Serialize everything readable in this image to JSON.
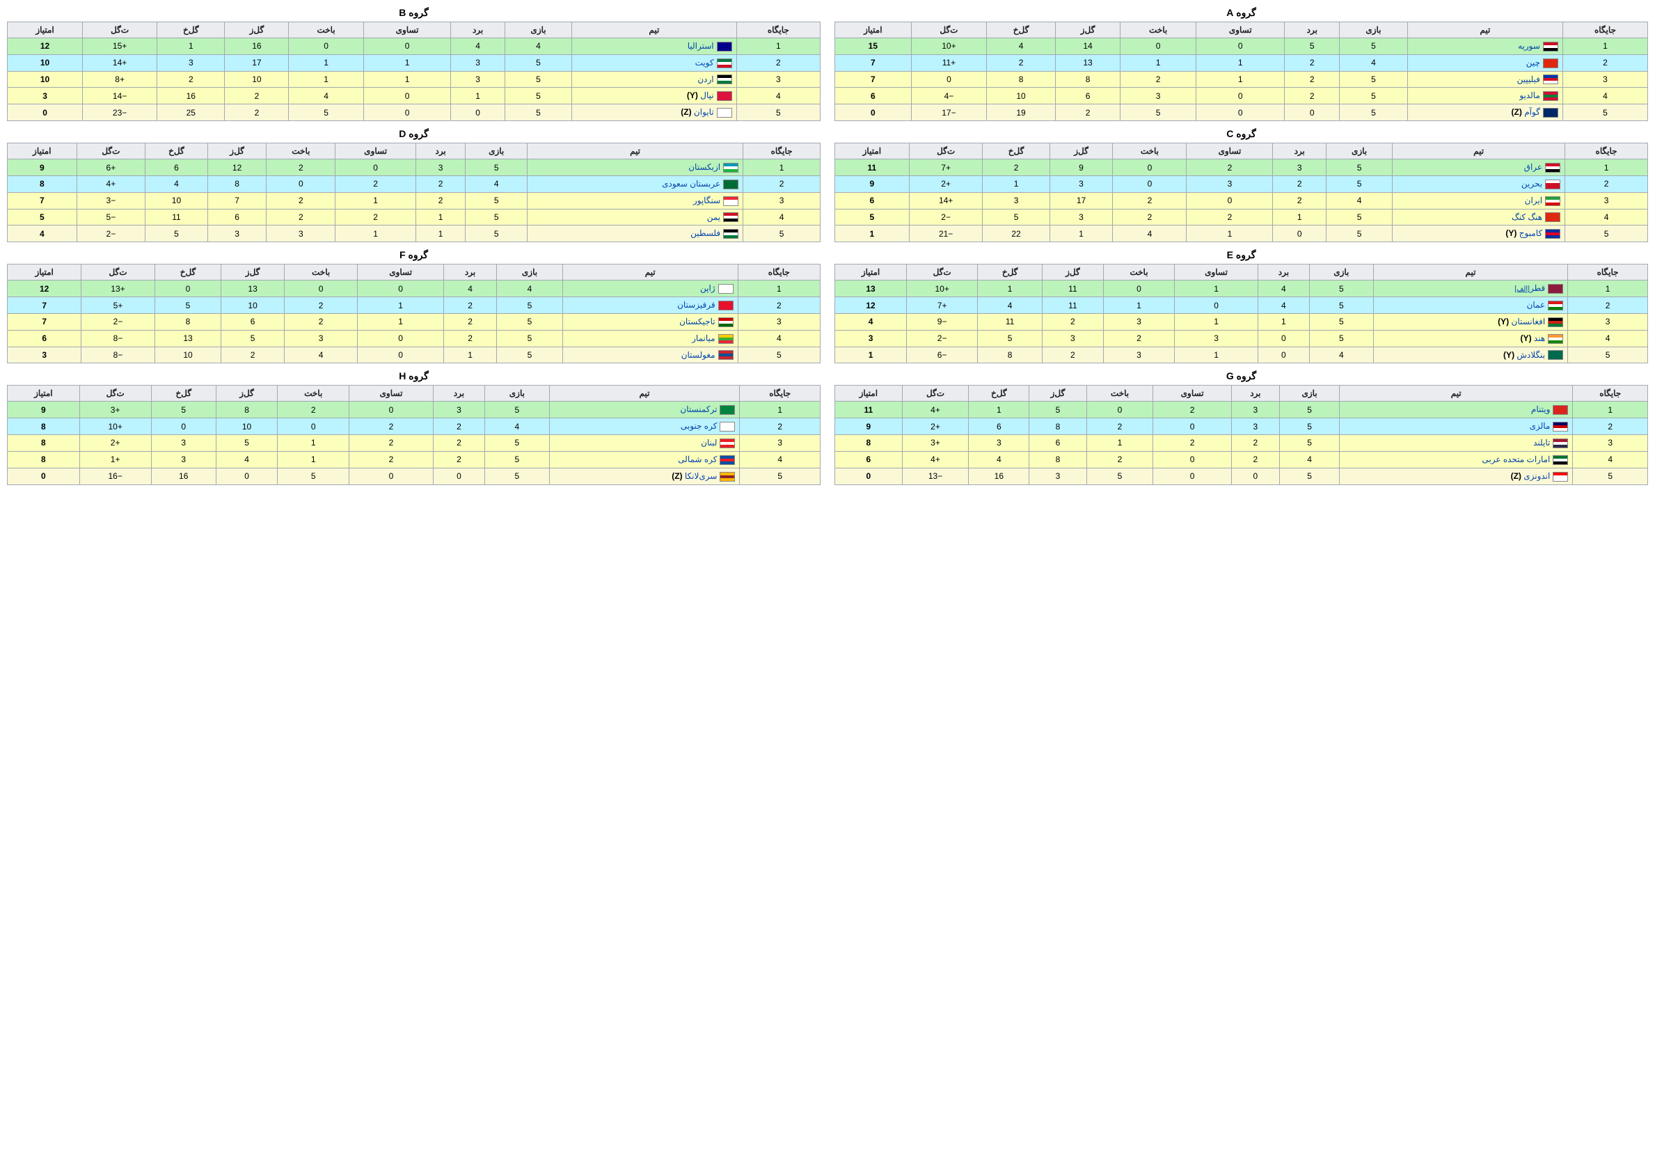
{
  "headers": [
    "جایگاه",
    "تیم",
    "بازی",
    "برد",
    "تساوی",
    "باخت",
    "گل‌ز",
    "گل‌خ",
    "ت‌گل",
    "امتیاز"
  ],
  "row_colors": {
    "green": "#bbf3bb",
    "blue": "#bbf3ff",
    "yellow": "#fbffbb",
    "cream": "#fbf8d6"
  },
  "flag_palette": {
    "syria": [
      "#ce1126",
      "#ffffff",
      "#000000"
    ],
    "china": [
      "#de2910",
      "#de2910",
      "#de2910"
    ],
    "philippines": [
      "#0038a8",
      "#ce1126",
      "#ffffff"
    ],
    "maldives": [
      "#d21034",
      "#007e3a",
      "#d21034"
    ],
    "guam": [
      "#002868",
      "#002868",
      "#002868"
    ],
    "australia": [
      "#00008b",
      "#00008b",
      "#00008b"
    ],
    "kuwait": [
      "#007a3d",
      "#ffffff",
      "#ce1126"
    ],
    "jordan": [
      "#000000",
      "#ffffff",
      "#007a3d"
    ],
    "nepal": [
      "#dc143c",
      "#dc143c",
      "#dc143c"
    ],
    "taiwan": [
      "#ffffff",
      "#ffffff",
      "#ffffff"
    ],
    "iraq": [
      "#ce1126",
      "#ffffff",
      "#000000"
    ],
    "bahrain": [
      "#ffffff",
      "#ce1126",
      "#ce1126"
    ],
    "iran": [
      "#239f40",
      "#ffffff",
      "#da0000"
    ],
    "hongkong": [
      "#de2910",
      "#de2910",
      "#de2910"
    ],
    "cambodia": [
      "#032ea1",
      "#e00025",
      "#032ea1"
    ],
    "uzbekistan": [
      "#0099b5",
      "#ffffff",
      "#1eb53a"
    ],
    "saudi": [
      "#006c35",
      "#006c35",
      "#006c35"
    ],
    "singapore": [
      "#ed2939",
      "#ffffff",
      "#ffffff"
    ],
    "yemen": [
      "#ce1126",
      "#ffffff",
      "#000000"
    ],
    "palestine": [
      "#000000",
      "#ffffff",
      "#007a3d"
    ],
    "qatar": [
      "#8d1b3d",
      "#8d1b3d",
      "#8d1b3d"
    ],
    "oman": [
      "#db161b",
      "#ffffff",
      "#008000"
    ],
    "afghanistan": [
      "#000000",
      "#d32011",
      "#007a36"
    ],
    "india": [
      "#ff9933",
      "#ffffff",
      "#138808"
    ],
    "bangladesh": [
      "#006a4e",
      "#006a4e",
      "#006a4e"
    ],
    "japan": [
      "#ffffff",
      "#ffffff",
      "#ffffff"
    ],
    "kyrgyzstan": [
      "#e8112d",
      "#e8112d",
      "#e8112d"
    ],
    "tajikistan": [
      "#cc0000",
      "#ffffff",
      "#006600"
    ],
    "myanmar": [
      "#fecb00",
      "#34b233",
      "#ea2839"
    ],
    "mongolia": [
      "#c4272f",
      "#015197",
      "#c4272f"
    ],
    "vietnam": [
      "#da251d",
      "#da251d",
      "#da251d"
    ],
    "malaysia": [
      "#010066",
      "#cc0001",
      "#ffffff"
    ],
    "thailand": [
      "#a51931",
      "#f4f5f8",
      "#2d2a4a"
    ],
    "uae": [
      "#00732f",
      "#ffffff",
      "#000000"
    ],
    "indonesia": [
      "#ff0000",
      "#ffffff",
      "#ffffff"
    ],
    "turkmenistan": [
      "#00843d",
      "#00843d",
      "#00843d"
    ],
    "skorea": [
      "#ffffff",
      "#ffffff",
      "#ffffff"
    ],
    "lebanon": [
      "#ed1c24",
      "#ffffff",
      "#ed1c24"
    ],
    "nkorea": [
      "#024fa2",
      "#ed1c27",
      "#024fa2"
    ],
    "srilanka": [
      "#feb700",
      "#8d2029",
      "#feb700"
    ]
  },
  "groups": [
    {
      "title": "گروه A",
      "rows": [
        {
          "pos": 1,
          "team": "سوریه",
          "flag": "syria",
          "p": 5,
          "w": 5,
          "d": 0,
          "l": 0,
          "gf": 14,
          "ga": 4,
          "gd": "+10",
          "pts": 15,
          "color": "green"
        },
        {
          "pos": 2,
          "team": "چین",
          "flag": "china",
          "p": 4,
          "w": 2,
          "d": 1,
          "l": 1,
          "gf": 13,
          "ga": 2,
          "gd": "+11",
          "pts": 7,
          "color": "blue"
        },
        {
          "pos": 3,
          "team": "فیلیپین",
          "flag": "philippines",
          "p": 5,
          "w": 2,
          "d": 1,
          "l": 2,
          "gf": 8,
          "ga": 8,
          "gd": "0",
          "pts": 7,
          "color": "yellow"
        },
        {
          "pos": 4,
          "team": "مالدیو",
          "flag": "maldives",
          "p": 5,
          "w": 2,
          "d": 0,
          "l": 3,
          "gf": 6,
          "ga": 10,
          "gd": "−4",
          "pts": 6,
          "color": "yellow"
        },
        {
          "pos": 5,
          "team": "گوآم",
          "flag": "guam",
          "suffix": "(Z)",
          "p": 5,
          "w": 0,
          "d": 0,
          "l": 5,
          "gf": 2,
          "ga": 19,
          "gd": "−17",
          "pts": 0,
          "color": "cream"
        }
      ]
    },
    {
      "title": "گروه B",
      "rows": [
        {
          "pos": 1,
          "team": "استرالیا",
          "flag": "australia",
          "p": 4,
          "w": 4,
          "d": 0,
          "l": 0,
          "gf": 16,
          "ga": 1,
          "gd": "+15",
          "pts": 12,
          "color": "green"
        },
        {
          "pos": 2,
          "team": "کویت",
          "flag": "kuwait",
          "p": 5,
          "w": 3,
          "d": 1,
          "l": 1,
          "gf": 17,
          "ga": 3,
          "gd": "+14",
          "pts": 10,
          "color": "blue"
        },
        {
          "pos": 3,
          "team": "اردن",
          "flag": "jordan",
          "p": 5,
          "w": 3,
          "d": 1,
          "l": 1,
          "gf": 10,
          "ga": 2,
          "gd": "+8",
          "pts": 10,
          "color": "yellow"
        },
        {
          "pos": 4,
          "team": "نپال",
          "flag": "nepal",
          "suffix": "(Y)",
          "p": 5,
          "w": 1,
          "d": 0,
          "l": 4,
          "gf": 2,
          "ga": 16,
          "gd": "−14",
          "pts": 3,
          "color": "yellow"
        },
        {
          "pos": 5,
          "team": "تایوان",
          "flag": "taiwan",
          "suffix": "(Z)",
          "p": 5,
          "w": 0,
          "d": 0,
          "l": 5,
          "gf": 2,
          "ga": 25,
          "gd": "−23",
          "pts": 0,
          "color": "cream"
        }
      ]
    },
    {
      "title": "گروه C",
      "rows": [
        {
          "pos": 1,
          "team": "عراق",
          "flag": "iraq",
          "p": 5,
          "w": 3,
          "d": 2,
          "l": 0,
          "gf": 9,
          "ga": 2,
          "gd": "+7",
          "pts": 11,
          "color": "green"
        },
        {
          "pos": 2,
          "team": "بحرین",
          "flag": "bahrain",
          "p": 5,
          "w": 2,
          "d": 3,
          "l": 0,
          "gf": 3,
          "ga": 1,
          "gd": "+2",
          "pts": 9,
          "color": "blue"
        },
        {
          "pos": 3,
          "team": "ایران",
          "flag": "iran",
          "p": 4,
          "w": 2,
          "d": 0,
          "l": 2,
          "gf": 17,
          "ga": 3,
          "gd": "+14",
          "pts": 6,
          "color": "yellow"
        },
        {
          "pos": 4,
          "team": "هنگ کنگ",
          "flag": "hongkong",
          "p": 5,
          "w": 1,
          "d": 2,
          "l": 2,
          "gf": 3,
          "ga": 5,
          "gd": "−2",
          "pts": 5,
          "color": "yellow"
        },
        {
          "pos": 5,
          "team": "کامبوج",
          "flag": "cambodia",
          "suffix": "(Y)",
          "p": 5,
          "w": 0,
          "d": 1,
          "l": 4,
          "gf": 1,
          "ga": 22,
          "gd": "−21",
          "pts": 1,
          "color": "cream"
        }
      ]
    },
    {
      "title": "گروه D",
      "rows": [
        {
          "pos": 1,
          "team": "ازبکستان",
          "flag": "uzbekistan",
          "p": 5,
          "w": 3,
          "d": 0,
          "l": 2,
          "gf": 12,
          "ga": 6,
          "gd": "+6",
          "pts": 9,
          "color": "green"
        },
        {
          "pos": 2,
          "team": "عربستان سعودی",
          "flag": "saudi",
          "p": 4,
          "w": 2,
          "d": 2,
          "l": 0,
          "gf": 8,
          "ga": 4,
          "gd": "+4",
          "pts": 8,
          "color": "blue"
        },
        {
          "pos": 3,
          "team": "سنگاپور",
          "flag": "singapore",
          "p": 5,
          "w": 2,
          "d": 1,
          "l": 2,
          "gf": 7,
          "ga": 10,
          "gd": "−3",
          "pts": 7,
          "color": "yellow"
        },
        {
          "pos": 4,
          "team": "یمن",
          "flag": "yemen",
          "p": 5,
          "w": 1,
          "d": 2,
          "l": 2,
          "gf": 6,
          "ga": 11,
          "gd": "−5",
          "pts": 5,
          "color": "yellow"
        },
        {
          "pos": 5,
          "team": "فلسطین",
          "flag": "palestine",
          "p": 5,
          "w": 1,
          "d": 1,
          "l": 3,
          "gf": 3,
          "ga": 5,
          "gd": "−2",
          "pts": 4,
          "color": "cream"
        }
      ]
    },
    {
      "title": "گروه E",
      "rows": [
        {
          "pos": 1,
          "team": "قطر",
          "flag": "qatar",
          "postfix": "[الف]",
          "p": 5,
          "w": 4,
          "d": 1,
          "l": 0,
          "gf": 11,
          "ga": 1,
          "gd": "+10",
          "pts": 13,
          "color": "green"
        },
        {
          "pos": 2,
          "team": "عمان",
          "flag": "oman",
          "p": 5,
          "w": 4,
          "d": 0,
          "l": 1,
          "gf": 11,
          "ga": 4,
          "gd": "+7",
          "pts": 12,
          "color": "blue"
        },
        {
          "pos": 3,
          "team": "افغانستان",
          "flag": "afghanistan",
          "suffix": "(Y)",
          "p": 5,
          "w": 1,
          "d": 1,
          "l": 3,
          "gf": 2,
          "ga": 11,
          "gd": "−9",
          "pts": 4,
          "color": "yellow"
        },
        {
          "pos": 4,
          "team": "هند",
          "flag": "india",
          "suffix": "(Y)",
          "p": 5,
          "w": 0,
          "d": 3,
          "l": 2,
          "gf": 3,
          "ga": 5,
          "gd": "−2",
          "pts": 3,
          "color": "yellow"
        },
        {
          "pos": 5,
          "team": "بنگلادش",
          "flag": "bangladesh",
          "suffix": "(Y)",
          "p": 4,
          "w": 0,
          "d": 1,
          "l": 3,
          "gf": 2,
          "ga": 8,
          "gd": "−6",
          "pts": 1,
          "color": "cream"
        }
      ]
    },
    {
      "title": "گروه F",
      "rows": [
        {
          "pos": 1,
          "team": "ژاپن",
          "flag": "japan",
          "p": 4,
          "w": 4,
          "d": 0,
          "l": 0,
          "gf": 13,
          "ga": 0,
          "gd": "+13",
          "pts": 12,
          "color": "green"
        },
        {
          "pos": 2,
          "team": "قرقیزستان",
          "flag": "kyrgyzstan",
          "p": 5,
          "w": 2,
          "d": 1,
          "l": 2,
          "gf": 10,
          "ga": 5,
          "gd": "+5",
          "pts": 7,
          "color": "blue"
        },
        {
          "pos": 3,
          "team": "تاجیکستان",
          "flag": "tajikistan",
          "p": 5,
          "w": 2,
          "d": 1,
          "l": 2,
          "gf": 6,
          "ga": 8,
          "gd": "−2",
          "pts": 7,
          "color": "yellow"
        },
        {
          "pos": 4,
          "team": "میانمار",
          "flag": "myanmar",
          "p": 5,
          "w": 2,
          "d": 0,
          "l": 3,
          "gf": 5,
          "ga": 13,
          "gd": "−8",
          "pts": 6,
          "color": "yellow"
        },
        {
          "pos": 5,
          "team": "مغولستان",
          "flag": "mongolia",
          "p": 5,
          "w": 1,
          "d": 0,
          "l": 4,
          "gf": 2,
          "ga": 10,
          "gd": "−8",
          "pts": 3,
          "color": "cream"
        }
      ]
    },
    {
      "title": "گروه G",
      "rows": [
        {
          "pos": 1,
          "team": "ویتنام",
          "flag": "vietnam",
          "p": 5,
          "w": 3,
          "d": 2,
          "l": 0,
          "gf": 5,
          "ga": 1,
          "gd": "+4",
          "pts": 11,
          "color": "green"
        },
        {
          "pos": 2,
          "team": "مالزی",
          "flag": "malaysia",
          "p": 5,
          "w": 3,
          "d": 0,
          "l": 2,
          "gf": 8,
          "ga": 6,
          "gd": "+2",
          "pts": 9,
          "color": "blue"
        },
        {
          "pos": 3,
          "team": "تایلند",
          "flag": "thailand",
          "p": 5,
          "w": 2,
          "d": 2,
          "l": 1,
          "gf": 6,
          "ga": 3,
          "gd": "+3",
          "pts": 8,
          "color": "yellow"
        },
        {
          "pos": 4,
          "team": "امارات متحده عربی",
          "flag": "uae",
          "p": 4,
          "w": 2,
          "d": 0,
          "l": 2,
          "gf": 8,
          "ga": 4,
          "gd": "+4",
          "pts": 6,
          "color": "yellow"
        },
        {
          "pos": 5,
          "team": "اندونزی",
          "flag": "indonesia",
          "suffix": "(Z)",
          "p": 5,
          "w": 0,
          "d": 0,
          "l": 5,
          "gf": 3,
          "ga": 16,
          "gd": "−13",
          "pts": 0,
          "color": "cream"
        }
      ]
    },
    {
      "title": "گروه H",
      "rows": [
        {
          "pos": 1,
          "team": "ترکمنستان",
          "flag": "turkmenistan",
          "p": 5,
          "w": 3,
          "d": 0,
          "l": 2,
          "gf": 8,
          "ga": 5,
          "gd": "+3",
          "pts": 9,
          "color": "green"
        },
        {
          "pos": 2,
          "team": "کره جنوبی",
          "flag": "skorea",
          "p": 4,
          "w": 2,
          "d": 2,
          "l": 0,
          "gf": 10,
          "ga": 0,
          "gd": "+10",
          "pts": 8,
          "color": "blue"
        },
        {
          "pos": 3,
          "team": "لبنان",
          "flag": "lebanon",
          "p": 5,
          "w": 2,
          "d": 2,
          "l": 1,
          "gf": 5,
          "ga": 3,
          "gd": "+2",
          "pts": 8,
          "color": "yellow"
        },
        {
          "pos": 4,
          "team": "کره شمالی",
          "flag": "nkorea",
          "p": 5,
          "w": 2,
          "d": 2,
          "l": 1,
          "gf": 4,
          "ga": 3,
          "gd": "+1",
          "pts": 8,
          "color": "yellow"
        },
        {
          "pos": 5,
          "team": "سری‌لانکا",
          "flag": "srilanka",
          "suffix": "(Z)",
          "p": 5,
          "w": 0,
          "d": 0,
          "l": 5,
          "gf": 0,
          "ga": 16,
          "gd": "−16",
          "pts": 0,
          "color": "cream"
        }
      ]
    }
  ]
}
